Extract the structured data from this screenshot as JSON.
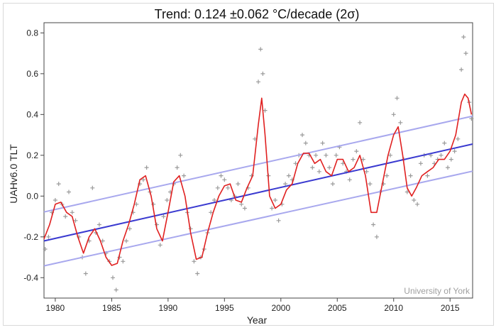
{
  "chart_data": {
    "type": "line",
    "title": "Trend: 0.124 ±0.062 °C/decade (2σ)",
    "xlabel": "Year",
    "ylabel": "UAHv6.0 TLT",
    "xlim": [
      1979,
      2017
    ],
    "ylim": [
      -0.5,
      0.85
    ],
    "x_ticks": [
      1980,
      1985,
      1990,
      1995,
      2000,
      2005,
      2010,
      2015
    ],
    "y_ticks": [
      -0.4,
      -0.2,
      0.0,
      0.2,
      0.4,
      0.6,
      0.8
    ],
    "y_tick_labels": [
      "-0.4",
      "-0.2",
      "0.0",
      "0.2",
      "0.4",
      "0.6",
      "0.8"
    ],
    "credit": "University of York",
    "grid": false,
    "colors": {
      "smoothed": "#e02020",
      "trend": "#3a3ad0",
      "band": "#a8a8ee",
      "monthly": "#9a9a9a"
    },
    "series": [
      {
        "name": "Monthly anomaly",
        "style": "markers",
        "x": [
          1979.1,
          1979.4,
          1979.7,
          1980.0,
          1980.3,
          1980.6,
          1980.9,
          1981.2,
          1981.5,
          1981.8,
          1982.1,
          1982.4,
          1982.7,
          1983.0,
          1983.3,
          1983.6,
          1983.9,
          1984.2,
          1984.5,
          1984.8,
          1985.1,
          1985.4,
          1985.7,
          1986.0,
          1986.3,
          1986.6,
          1986.9,
          1987.2,
          1987.5,
          1987.8,
          1988.1,
          1988.4,
          1988.7,
          1989.0,
          1989.3,
          1989.6,
          1989.9,
          1990.2,
          1990.5,
          1990.8,
          1991.1,
          1991.4,
          1991.7,
          1992.0,
          1992.3,
          1992.6,
          1992.9,
          1993.2,
          1993.5,
          1993.8,
          1994.1,
          1994.4,
          1994.7,
          1995.0,
          1995.3,
          1995.6,
          1995.9,
          1996.2,
          1996.5,
          1996.8,
          1997.1,
          1997.4,
          1997.7,
          1998.0,
          1998.2,
          1998.4,
          1998.6,
          1998.9,
          1999.2,
          1999.5,
          1999.8,
          2000.1,
          2000.4,
          2000.7,
          2001.0,
          2001.3,
          2001.6,
          2001.9,
          2002.2,
          2002.5,
          2002.8,
          2003.1,
          2003.4,
          2003.7,
          2004.0,
          2004.3,
          2004.6,
          2004.9,
          2005.2,
          2005.5,
          2005.8,
          2006.1,
          2006.4,
          2006.7,
          2007.0,
          2007.3,
          2007.6,
          2007.9,
          2008.2,
          2008.5,
          2008.8,
          2009.1,
          2009.4,
          2009.7,
          2010.0,
          2010.3,
          2010.6,
          2010.9,
          2011.2,
          2011.5,
          2011.8,
          2012.1,
          2012.4,
          2012.7,
          2013.0,
          2013.3,
          2013.6,
          2013.9,
          2014.2,
          2014.5,
          2014.8,
          2015.1,
          2015.4,
          2015.7,
          2016.0,
          2016.2,
          2016.4,
          2016.7,
          2016.9
        ],
        "values": [
          -0.26,
          -0.2,
          -0.08,
          -0.02,
          0.06,
          -0.04,
          -0.1,
          0.02,
          -0.08,
          -0.12,
          -0.2,
          -0.3,
          -0.38,
          -0.22,
          0.04,
          -0.18,
          -0.14,
          -0.22,
          -0.28,
          -0.32,
          -0.4,
          -0.46,
          -0.3,
          -0.32,
          -0.22,
          -0.16,
          -0.08,
          -0.04,
          0.06,
          0.08,
          0.14,
          0.02,
          -0.04,
          -0.14,
          -0.24,
          -0.1,
          -0.02,
          0.02,
          0.06,
          0.14,
          0.2,
          0.1,
          -0.08,
          -0.16,
          -0.32,
          -0.38,
          -0.3,
          -0.26,
          -0.18,
          -0.08,
          -0.02,
          0.04,
          0.1,
          0.08,
          0.04,
          -0.02,
          0.0,
          0.06,
          -0.04,
          -0.06,
          0.04,
          0.1,
          0.28,
          0.56,
          0.72,
          0.6,
          0.42,
          0.1,
          -0.06,
          -0.02,
          -0.12,
          -0.04,
          0.06,
          0.1,
          0.08,
          0.16,
          0.2,
          0.3,
          0.26,
          0.2,
          0.14,
          0.2,
          0.12,
          0.26,
          0.2,
          0.14,
          0.06,
          0.2,
          0.24,
          0.16,
          0.12,
          0.08,
          0.18,
          0.22,
          0.36,
          0.18,
          0.12,
          0.06,
          -0.14,
          -0.2,
          0.02,
          0.06,
          0.1,
          0.2,
          0.4,
          0.48,
          0.36,
          0.18,
          0.02,
          0.1,
          -0.02,
          -0.04,
          0.16,
          0.2,
          0.1,
          0.2,
          0.16,
          0.18,
          0.2,
          0.26,
          0.14,
          0.18,
          0.22,
          0.28,
          0.62,
          0.78,
          0.7,
          0.46,
          0.38
        ]
      },
      {
        "name": "13-month smoothed",
        "style": "line",
        "x": [
          1979.0,
          1979.5,
          1980.0,
          1980.5,
          1981.0,
          1981.5,
          1982.0,
          1982.5,
          1983.0,
          1983.5,
          1984.0,
          1984.5,
          1985.0,
          1985.5,
          1986.0,
          1986.5,
          1987.0,
          1987.5,
          1988.0,
          1988.5,
          1989.0,
          1989.5,
          1990.0,
          1990.5,
          1991.0,
          1991.5,
          1992.0,
          1992.5,
          1993.0,
          1993.5,
          1994.0,
          1994.5,
          1995.0,
          1995.5,
          1996.0,
          1996.5,
          1997.0,
          1997.5,
          1998.0,
          1998.3,
          1998.6,
          1999.0,
          1999.5,
          2000.0,
          2000.5,
          2001.0,
          2001.5,
          2002.0,
          2002.5,
          2003.0,
          2003.5,
          2004.0,
          2004.5,
          2005.0,
          2005.5,
          2006.0,
          2006.5,
          2007.0,
          2007.5,
          2008.0,
          2008.5,
          2009.0,
          2009.5,
          2010.0,
          2010.4,
          2010.8,
          2011.2,
          2011.6,
          2012.0,
          2012.5,
          2013.0,
          2013.5,
          2014.0,
          2014.5,
          2015.0,
          2015.5,
          2016.0,
          2016.3,
          2016.6,
          2016.9
        ],
        "values": [
          -0.21,
          -0.14,
          -0.04,
          -0.03,
          -0.08,
          -0.1,
          -0.2,
          -0.28,
          -0.2,
          -0.16,
          -0.22,
          -0.3,
          -0.34,
          -0.33,
          -0.22,
          -0.14,
          -0.04,
          0.08,
          0.1,
          0.0,
          -0.16,
          -0.22,
          -0.08,
          0.07,
          0.1,
          0.0,
          -0.18,
          -0.31,
          -0.3,
          -0.18,
          -0.08,
          0.0,
          0.05,
          0.06,
          -0.02,
          -0.03,
          0.04,
          0.1,
          0.35,
          0.48,
          0.3,
          0.0,
          -0.06,
          -0.04,
          0.03,
          0.06,
          0.16,
          0.21,
          0.21,
          0.16,
          0.18,
          0.12,
          0.1,
          0.18,
          0.18,
          0.12,
          0.14,
          0.2,
          0.1,
          -0.08,
          -0.08,
          0.06,
          0.2,
          0.3,
          0.34,
          0.2,
          0.04,
          0.0,
          0.04,
          0.1,
          0.12,
          0.14,
          0.18,
          0.18,
          0.22,
          0.3,
          0.46,
          0.5,
          0.48,
          0.4
        ]
      },
      {
        "name": "Linear trend",
        "style": "line",
        "x": [
          1979.0,
          2017.0
        ],
        "values": [
          -0.22,
          0.255
        ]
      },
      {
        "name": "Upper 2σ band",
        "style": "line",
        "x": [
          1979.0,
          2017.0
        ],
        "values": [
          -0.078,
          0.392
        ]
      },
      {
        "name": "Lower 2σ band",
        "style": "line",
        "x": [
          1979.0,
          2017.0
        ],
        "values": [
          -0.342,
          0.122
        ]
      }
    ]
  }
}
